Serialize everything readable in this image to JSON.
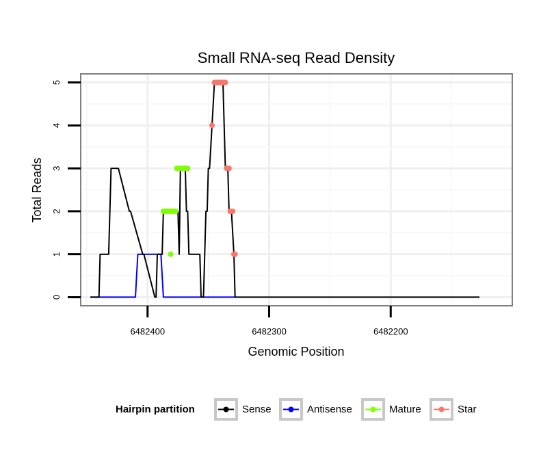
{
  "chart_data": {
    "type": "line",
    "title": "Small RNA-seq Read Density",
    "xlabel": "Genomic Position",
    "ylabel": "Total Reads",
    "x_reversed": true,
    "xlim": [
      6482100,
      6482455
    ],
    "ylim": [
      -0.2,
      5.2
    ],
    "x_ticks": [
      6482400,
      6482300,
      6482200
    ],
    "x_tick_labels": [
      "6482400",
      "6482300",
      "6482200"
    ],
    "y_ticks": [
      0,
      1,
      2,
      3,
      4,
      5
    ],
    "y_tick_labels": [
      "0",
      "1",
      "2",
      "3",
      "4",
      "5"
    ],
    "grid": true,
    "legend": {
      "title": "Hairpin partition",
      "position": "bottom",
      "entries": [
        {
          "label": "Sense",
          "color": "#000000"
        },
        {
          "label": "Antisense",
          "color": "#0000ff"
        },
        {
          "label": "Mature",
          "color": "#7fff00"
        },
        {
          "label": "Star",
          "color": "#f8766d"
        }
      ]
    },
    "series": [
      {
        "name": "Sense",
        "color": "#000000",
        "x": [
          6482447,
          6482440,
          6482439,
          6482432,
          6482430,
          6482424,
          6482415,
          6482414,
          6482404,
          6482403,
          6482394,
          6482393,
          6482392,
          6482389,
          6482388,
          6482387,
          6482375,
          6482374,
          6482373,
          6482372,
          6482370,
          6482369,
          6482368,
          6482367,
          6482366,
          6482357,
          6482356,
          6482354,
          6482353,
          6482352,
          6482351,
          6482350,
          6482349,
          6482347,
          6482345,
          6482344,
          6482342,
          6482340,
          6482338,
          6482336,
          6482334,
          6482333,
          6482331,
          6482329,
          6482328,
          6482127
        ],
        "y": [
          0,
          0,
          1,
          1,
          3,
          3,
          2,
          2,
          1,
          1,
          0,
          0,
          1,
          1,
          1,
          2,
          2,
          1,
          3,
          3,
          3,
          3,
          2,
          2,
          1,
          1,
          0,
          0,
          1,
          2,
          2,
          3,
          3,
          4,
          5,
          5,
          5,
          5,
          5,
          3,
          3,
          2,
          2,
          1,
          0,
          0
        ]
      },
      {
        "name": "Antisense",
        "color": "#0000ff",
        "x": [
          6482447,
          6482410,
          6482408,
          6482389,
          6482387,
          6482328
        ],
        "y": [
          0,
          0,
          1,
          1,
          0,
          0
        ]
      },
      {
        "name": "Mature",
        "color": "#7fff00",
        "x": [
          6482387,
          6482386,
          6482385,
          6482384,
          6482383,
          6482382,
          6482381,
          6482380,
          6482379,
          6482378,
          6482377,
          6482376,
          6482375,
          6482374,
          6482373,
          6482372,
          6482371,
          6482370,
          6482369,
          6482368,
          6482367
        ],
        "y": [
          2,
          2,
          2,
          2,
          2,
          2,
          1,
          2,
          2,
          2,
          2,
          3,
          3,
          3,
          3,
          3,
          3,
          3,
          3,
          3,
          3
        ]
      },
      {
        "name": "Star",
        "color": "#f8766d",
        "x": [
          6482347,
          6482345,
          6482344,
          6482343,
          6482342,
          6482341,
          6482340,
          6482339,
          6482338,
          6482337,
          6482336,
          6482335,
          6482334,
          6482333,
          6482332,
          6482331,
          6482330,
          6482329,
          6482328
        ],
        "y": [
          4,
          5,
          5,
          5,
          5,
          5,
          5,
          5,
          5,
          5,
          5,
          3,
          3,
          3,
          2,
          2,
          2,
          1,
          1
        ]
      }
    ]
  }
}
